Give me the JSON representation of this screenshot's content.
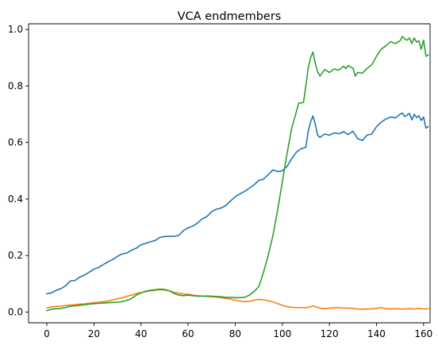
{
  "chart_data": {
    "type": "line",
    "title": "VCA endmembers",
    "xlabel": "",
    "ylabel": "",
    "xlim": [
      -7.75,
      162.75
    ],
    "ylim": [
      -0.038,
      1.02
    ],
    "x_ticks": [
      0,
      20,
      40,
      60,
      80,
      100,
      120,
      140,
      160
    ],
    "y_ticks": [
      0.0,
      0.2,
      0.4,
      0.6,
      0.8,
      1.0
    ],
    "x_tick_labels": [
      "0",
      "20",
      "40",
      "60",
      "80",
      "100",
      "120",
      "140",
      "160"
    ],
    "y_tick_labels": [
      "0.0",
      "0.2",
      "0.4",
      "0.6",
      "0.8",
      "1.0"
    ],
    "grid": false,
    "legend": "none",
    "colors": {
      "series1": "#1f77b4",
      "series2": "#ff7f0e",
      "series3": "#2ca02c"
    },
    "series": [
      {
        "color": "#1f77b4",
        "points": [
          [
            0,
            0.065
          ],
          [
            2,
            0.068
          ],
          [
            4,
            0.077
          ],
          [
            6,
            0.083
          ],
          [
            8,
            0.093
          ],
          [
            10,
            0.11
          ],
          [
            12,
            0.112
          ],
          [
            14,
            0.124
          ],
          [
            16,
            0.131
          ],
          [
            18,
            0.141
          ],
          [
            20,
            0.152
          ],
          [
            22,
            0.158
          ],
          [
            24,
            0.168
          ],
          [
            26,
            0.178
          ],
          [
            28,
            0.186
          ],
          [
            30,
            0.197
          ],
          [
            32,
            0.206
          ],
          [
            34,
            0.209
          ],
          [
            36,
            0.219
          ],
          [
            38,
            0.226
          ],
          [
            40,
            0.238
          ],
          [
            42,
            0.243
          ],
          [
            44,
            0.249
          ],
          [
            46,
            0.253
          ],
          [
            48,
            0.264
          ],
          [
            50,
            0.267
          ],
          [
            52,
            0.268
          ],
          [
            54,
            0.268
          ],
          [
            56,
            0.271
          ],
          [
            58,
            0.288
          ],
          [
            60,
            0.298
          ],
          [
            62,
            0.304
          ],
          [
            64,
            0.315
          ],
          [
            66,
            0.33
          ],
          [
            68,
            0.338
          ],
          [
            70,
            0.355
          ],
          [
            72,
            0.364
          ],
          [
            74,
            0.368
          ],
          [
            76,
            0.377
          ],
          [
            78,
            0.393
          ],
          [
            80,
            0.408
          ],
          [
            82,
            0.418
          ],
          [
            84,
            0.427
          ],
          [
            86,
            0.438
          ],
          [
            88,
            0.45
          ],
          [
            90,
            0.466
          ],
          [
            92,
            0.47
          ],
          [
            94,
            0.486
          ],
          [
            96,
            0.503
          ],
          [
            98,
            0.497
          ],
          [
            100,
            0.5
          ],
          [
            102,
            0.515
          ],
          [
            104,
            0.543
          ],
          [
            106,
            0.566
          ],
          [
            108,
            0.578
          ],
          [
            110,
            0.583
          ],
          [
            111,
            0.64
          ],
          [
            112,
            0.672
          ],
          [
            113,
            0.694
          ],
          [
            114,
            0.665
          ],
          [
            115,
            0.626
          ],
          [
            116,
            0.618
          ],
          [
            118,
            0.63
          ],
          [
            120,
            0.626
          ],
          [
            122,
            0.634
          ],
          [
            124,
            0.631
          ],
          [
            126,
            0.638
          ],
          [
            128,
            0.628
          ],
          [
            130,
            0.64
          ],
          [
            132,
            0.614
          ],
          [
            134,
            0.607
          ],
          [
            136,
            0.626
          ],
          [
            138,
            0.63
          ],
          [
            140,
            0.656
          ],
          [
            142,
            0.672
          ],
          [
            144,
            0.683
          ],
          [
            146,
            0.69
          ],
          [
            148,
            0.687
          ],
          [
            150,
            0.7
          ],
          [
            151,
            0.704
          ],
          [
            152,
            0.692
          ],
          [
            153,
            0.697
          ],
          [
            154,
            0.703
          ],
          [
            155,
            0.68
          ],
          [
            156,
            0.7
          ],
          [
            157,
            0.688
          ],
          [
            158,
            0.695
          ],
          [
            159,
            0.678
          ],
          [
            160,
            0.69
          ],
          [
            161,
            0.651
          ],
          [
            162,
            0.656
          ]
        ]
      },
      {
        "color": "#ff7f0e",
        "points": [
          [
            0,
            0.015
          ],
          [
            2,
            0.018
          ],
          [
            4,
            0.02
          ],
          [
            6,
            0.021
          ],
          [
            8,
            0.023
          ],
          [
            10,
            0.025
          ],
          [
            12,
            0.026
          ],
          [
            14,
            0.028
          ],
          [
            16,
            0.029
          ],
          [
            18,
            0.031
          ],
          [
            20,
            0.033
          ],
          [
            22,
            0.035
          ],
          [
            24,
            0.037
          ],
          [
            26,
            0.039
          ],
          [
            28,
            0.043
          ],
          [
            30,
            0.047
          ],
          [
            32,
            0.05
          ],
          [
            34,
            0.056
          ],
          [
            36,
            0.06
          ],
          [
            38,
            0.066
          ],
          [
            40,
            0.069
          ],
          [
            42,
            0.072
          ],
          [
            44,
            0.075
          ],
          [
            46,
            0.077
          ],
          [
            48,
            0.079
          ],
          [
            50,
            0.078
          ],
          [
            52,
            0.075
          ],
          [
            54,
            0.07
          ],
          [
            56,
            0.067
          ],
          [
            58,
            0.064
          ],
          [
            60,
            0.063
          ],
          [
            62,
            0.06
          ],
          [
            64,
            0.058
          ],
          [
            66,
            0.057
          ],
          [
            68,
            0.055
          ],
          [
            70,
            0.054
          ],
          [
            72,
            0.053
          ],
          [
            74,
            0.051
          ],
          [
            76,
            0.048
          ],
          [
            78,
            0.046
          ],
          [
            80,
            0.042
          ],
          [
            82,
            0.039
          ],
          [
            84,
            0.037
          ],
          [
            86,
            0.038
          ],
          [
            88,
            0.042
          ],
          [
            90,
            0.045
          ],
          [
            92,
            0.043
          ],
          [
            94,
            0.04
          ],
          [
            96,
            0.036
          ],
          [
            98,
            0.03
          ],
          [
            100,
            0.024
          ],
          [
            102,
            0.019
          ],
          [
            104,
            0.017
          ],
          [
            106,
            0.016
          ],
          [
            108,
            0.016
          ],
          [
            110,
            0.015
          ],
          [
            112,
            0.019
          ],
          [
            113,
            0.022
          ],
          [
            114,
            0.019
          ],
          [
            116,
            0.014
          ],
          [
            118,
            0.012
          ],
          [
            120,
            0.014
          ],
          [
            122,
            0.015
          ],
          [
            124,
            0.015
          ],
          [
            126,
            0.014
          ],
          [
            128,
            0.014
          ],
          [
            130,
            0.013
          ],
          [
            132,
            0.011
          ],
          [
            134,
            0.01
          ],
          [
            136,
            0.011
          ],
          [
            138,
            0.011
          ],
          [
            140,
            0.013
          ],
          [
            142,
            0.016
          ],
          [
            144,
            0.012
          ],
          [
            146,
            0.011
          ],
          [
            148,
            0.012
          ],
          [
            150,
            0.011
          ],
          [
            152,
            0.011
          ],
          [
            154,
            0.012
          ],
          [
            156,
            0.011
          ],
          [
            158,
            0.013
          ],
          [
            160,
            0.011
          ],
          [
            162,
            0.012
          ]
        ]
      },
      {
        "color": "#2ca02c",
        "points": [
          [
            0,
            0.005
          ],
          [
            2,
            0.01
          ],
          [
            4,
            0.012
          ],
          [
            6,
            0.013
          ],
          [
            8,
            0.016
          ],
          [
            10,
            0.021
          ],
          [
            12,
            0.022
          ],
          [
            14,
            0.024
          ],
          [
            16,
            0.026
          ],
          [
            18,
            0.028
          ],
          [
            20,
            0.03
          ],
          [
            22,
            0.031
          ],
          [
            24,
            0.032
          ],
          [
            26,
            0.033
          ],
          [
            28,
            0.034
          ],
          [
            30,
            0.035
          ],
          [
            32,
            0.037
          ],
          [
            34,
            0.041
          ],
          [
            36,
            0.048
          ],
          [
            38,
            0.06
          ],
          [
            40,
            0.068
          ],
          [
            42,
            0.074
          ],
          [
            44,
            0.077
          ],
          [
            46,
            0.079
          ],
          [
            48,
            0.081
          ],
          [
            50,
            0.08
          ],
          [
            52,
            0.075
          ],
          [
            54,
            0.066
          ],
          [
            56,
            0.06
          ],
          [
            58,
            0.058
          ],
          [
            60,
            0.06
          ],
          [
            62,
            0.058
          ],
          [
            64,
            0.056
          ],
          [
            66,
            0.056
          ],
          [
            68,
            0.057
          ],
          [
            70,
            0.056
          ],
          [
            72,
            0.055
          ],
          [
            74,
            0.054
          ],
          [
            76,
            0.052
          ],
          [
            78,
            0.052
          ],
          [
            80,
            0.051
          ],
          [
            82,
            0.051
          ],
          [
            84,
            0.052
          ],
          [
            86,
            0.06
          ],
          [
            88,
            0.072
          ],
          [
            90,
            0.09
          ],
          [
            92,
            0.14
          ],
          [
            94,
            0.2
          ],
          [
            96,
            0.27
          ],
          [
            98,
            0.36
          ],
          [
            100,
            0.46
          ],
          [
            102,
            0.56
          ],
          [
            104,
            0.65
          ],
          [
            106,
            0.71
          ],
          [
            107,
            0.74
          ],
          [
            108,
            0.74
          ],
          [
            109,
            0.742
          ],
          [
            110,
            0.8
          ],
          [
            111,
            0.863
          ],
          [
            112,
            0.9
          ],
          [
            113,
            0.92
          ],
          [
            114,
            0.88
          ],
          [
            115,
            0.85
          ],
          [
            116,
            0.835
          ],
          [
            118,
            0.858
          ],
          [
            120,
            0.848
          ],
          [
            122,
            0.86
          ],
          [
            124,
            0.856
          ],
          [
            126,
            0.87
          ],
          [
            127,
            0.862
          ],
          [
            128,
            0.872
          ],
          [
            130,
            0.863
          ],
          [
            131,
            0.835
          ],
          [
            132,
            0.848
          ],
          [
            134,
            0.845
          ],
          [
            136,
            0.862
          ],
          [
            138,
            0.875
          ],
          [
            140,
            0.905
          ],
          [
            142,
            0.93
          ],
          [
            144,
            0.942
          ],
          [
            146,
            0.957
          ],
          [
            148,
            0.95
          ],
          [
            150,
            0.96
          ],
          [
            151,
            0.975
          ],
          [
            152,
            0.966
          ],
          [
            153,
            0.962
          ],
          [
            154,
            0.97
          ],
          [
            155,
            0.95
          ],
          [
            156,
            0.97
          ],
          [
            157,
            0.955
          ],
          [
            158,
            0.96
          ],
          [
            159,
            0.93
          ],
          [
            160,
            0.962
          ],
          [
            161,
            0.905
          ],
          [
            162,
            0.91
          ]
        ]
      }
    ]
  }
}
